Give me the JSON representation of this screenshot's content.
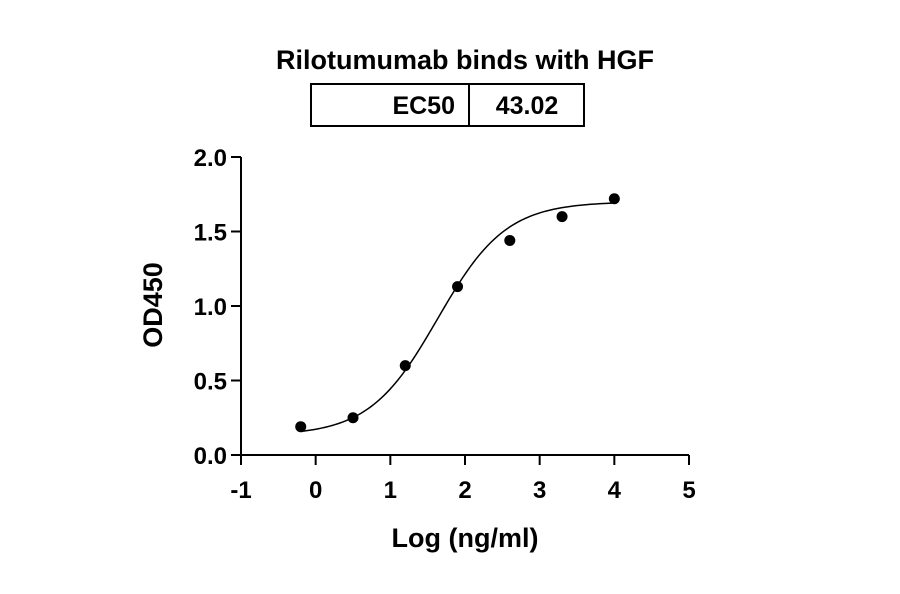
{
  "chart_data": {
    "type": "scatter",
    "title": "Rilotumumab binds with HGF",
    "xlabel": "Log (ng/ml)",
    "ylabel": "OD450",
    "xlim": [
      -1,
      5
    ],
    "ylim": [
      0,
      2
    ],
    "x_ticks": [
      "-1",
      "0",
      "1",
      "2",
      "3",
      "4",
      "5"
    ],
    "y_ticks": [
      "0.0",
      "0.5",
      "1.0",
      "1.5",
      "2.0"
    ],
    "grid": false,
    "legend": "top",
    "ec50_table": {
      "label": "EC50",
      "value": "43.02"
    },
    "series": [
      {
        "points": [
          {
            "x": -0.2,
            "y": 0.19
          },
          {
            "x": 0.5,
            "y": 0.25
          },
          {
            "x": 1.2,
            "y": 0.6
          },
          {
            "x": 1.9,
            "y": 1.13
          },
          {
            "x": 2.6,
            "y": 1.44
          },
          {
            "x": 3.3,
            "y": 1.6
          },
          {
            "x": 4.0,
            "y": 1.72
          }
        ]
      }
    ],
    "fit_curve": {
      "model": "4PL",
      "bottom": 0.13,
      "top": 1.7,
      "log_ec50": 1.634,
      "hill_slope": 0.95
    },
    "colors": {
      "marker": "#000000",
      "line": "#000000",
      "axis": "#000000"
    }
  }
}
